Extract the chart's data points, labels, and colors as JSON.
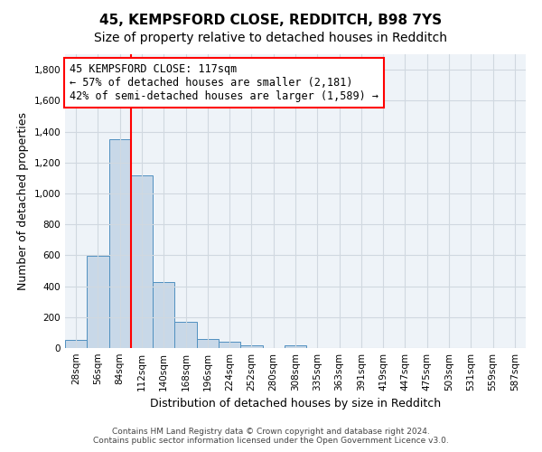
{
  "title1": "45, KEMPSFORD CLOSE, REDDITCH, B98 7YS",
  "title2": "Size of property relative to detached houses in Redditch",
  "xlabel": "Distribution of detached houses by size in Redditch",
  "ylabel": "Number of detached properties",
  "bar_labels": [
    "28sqm",
    "56sqm",
    "84sqm",
    "112sqm",
    "140sqm",
    "168sqm",
    "196sqm",
    "224sqm",
    "252sqm",
    "280sqm",
    "308sqm",
    "335sqm",
    "363sqm",
    "391sqm",
    "419sqm",
    "447sqm",
    "475sqm",
    "503sqm",
    "531sqm",
    "559sqm",
    "587sqm"
  ],
  "bar_values": [
    50,
    595,
    1350,
    1115,
    425,
    170,
    60,
    40,
    15,
    0,
    20,
    0,
    0,
    0,
    0,
    0,
    0,
    0,
    0,
    0,
    0
  ],
  "bar_color": "#c8d8e8",
  "bar_edge_color": "#5090c0",
  "vline_color": "red",
  "annotation_text": "45 KEMPSFORD CLOSE: 117sqm\n← 57% of detached houses are smaller (2,181)\n42% of semi-detached houses are larger (1,589) →",
  "annotation_box_color": "white",
  "annotation_box_edge_color": "red",
  "ylim": [
    0,
    1900
  ],
  "yticks": [
    0,
    200,
    400,
    600,
    800,
    1000,
    1200,
    1400,
    1600,
    1800
  ],
  "grid_color": "#d0d8e0",
  "bg_color": "#eef3f8",
  "footnote": "Contains HM Land Registry data © Crown copyright and database right 2024.\nContains public sector information licensed under the Open Government Licence v3.0.",
  "title1_fontsize": 11,
  "title2_fontsize": 10,
  "xlabel_fontsize": 9,
  "ylabel_fontsize": 9,
  "tick_fontsize": 7.5,
  "annot_fontsize": 8.5,
  "footnote_fontsize": 6.5
}
